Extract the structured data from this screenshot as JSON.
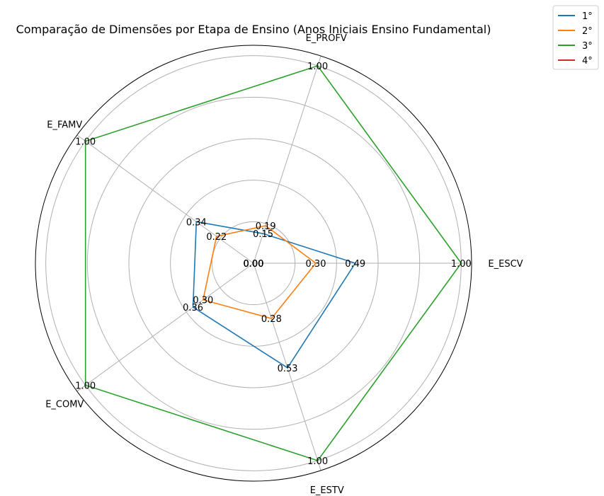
{
  "chart_data": {
    "type": "radar",
    "title": "Comparação de Dimensões por Etapa de Ensino (Anos Iniciais Ensino Fundamental)",
    "axes": [
      "E_ESCV",
      "E_PROFV",
      "E_FAMV",
      "E_COMV",
      "E_ESTV"
    ],
    "rlim": [
      0,
      1.05
    ],
    "grid": true,
    "legend_position": "top-right outside",
    "series": [
      {
        "name": "1°",
        "color": "#1f77b4",
        "values": [
          0.49,
          0.15,
          0.34,
          0.36,
          0.53
        ],
        "labels": [
          "0.49",
          "0.15",
          "0.34",
          "0.36",
          "0.53"
        ]
      },
      {
        "name": "2°",
        "color": "#ff7f0e",
        "values": [
          0.3,
          0.19,
          0.22,
          0.3,
          0.28
        ],
        "labels": [
          "0.30",
          "0.19",
          "0.22",
          "0.30",
          "0.28"
        ]
      },
      {
        "name": "3°",
        "color": "#2ca02c",
        "values": [
          1.0,
          1.0,
          1.0,
          1.0,
          1.0
        ],
        "labels": [
          "1.00",
          "1.00",
          "1.00",
          "1.00",
          "1.00"
        ]
      },
      {
        "name": "4°",
        "color": "#d62728",
        "values": [
          0.0,
          0.0,
          0.0,
          0.0,
          0.0
        ],
        "labels": [
          "0.00",
          "0.00",
          "0.00",
          "0.00",
          "0.00"
        ]
      }
    ]
  }
}
